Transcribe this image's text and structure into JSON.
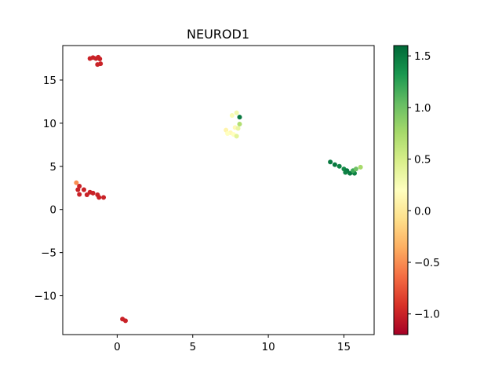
{
  "chart_data": {
    "type": "scatter",
    "title": "NEUROD1",
    "xlabel": "",
    "ylabel": "",
    "xlim": [
      -3.6,
      17.0
    ],
    "ylim": [
      -14.5,
      19.0
    ],
    "xticks": [
      0,
      5,
      10,
      15
    ],
    "xtick_labels": [
      "0",
      "5",
      "10",
      "15"
    ],
    "yticks": [
      -10,
      -5,
      0,
      5,
      10,
      15
    ],
    "ytick_labels": [
      "−10",
      "−5",
      "0",
      "5",
      "10",
      "15"
    ],
    "grid": false,
    "colorbar": {
      "colormap": "RdYlGn",
      "range": [
        -1.2,
        1.6
      ],
      "ticks": [
        -1.0,
        -0.5,
        0.0,
        0.5,
        1.0,
        1.5
      ],
      "tick_labels": [
        "−1.0",
        "−0.5",
        "0.0",
        "0.5",
        "1.0",
        "1.5"
      ]
    },
    "points": [
      {
        "x": -1.8,
        "y": 17.5,
        "v": -1.0
      },
      {
        "x": -1.6,
        "y": 17.6,
        "v": -1.0
      },
      {
        "x": -1.4,
        "y": 17.5,
        "v": -1.0
      },
      {
        "x": -1.25,
        "y": 17.65,
        "v": -1.0
      },
      {
        "x": -1.15,
        "y": 17.45,
        "v": -1.0
      },
      {
        "x": -1.3,
        "y": 16.8,
        "v": -1.0
      },
      {
        "x": -1.1,
        "y": 16.9,
        "v": -1.0
      },
      {
        "x": -2.7,
        "y": 3.1,
        "v": -0.5
      },
      {
        "x": -2.5,
        "y": 2.7,
        "v": -1.0
      },
      {
        "x": -2.6,
        "y": 2.3,
        "v": -1.0
      },
      {
        "x": -2.2,
        "y": 2.3,
        "v": -1.0
      },
      {
        "x": -1.8,
        "y": 2.0,
        "v": -1.0
      },
      {
        "x": -1.6,
        "y": 1.9,
        "v": -1.0
      },
      {
        "x": -1.3,
        "y": 1.7,
        "v": -1.0
      },
      {
        "x": -2.5,
        "y": 1.75,
        "v": -1.0
      },
      {
        "x": -2.0,
        "y": 1.7,
        "v": -1.0
      },
      {
        "x": -1.2,
        "y": 1.4,
        "v": -1.0
      },
      {
        "x": -0.9,
        "y": 1.4,
        "v": -1.0
      },
      {
        "x": 0.35,
        "y": -12.7,
        "v": -1.0
      },
      {
        "x": 0.55,
        "y": -12.9,
        "v": -1.0
      },
      {
        "x": 7.9,
        "y": 11.2,
        "v": 0.3
      },
      {
        "x": 7.6,
        "y": 10.9,
        "v": 0.25
      },
      {
        "x": 8.1,
        "y": 10.7,
        "v": 1.5
      },
      {
        "x": 8.1,
        "y": 9.9,
        "v": 0.7
      },
      {
        "x": 7.8,
        "y": 9.5,
        "v": 0.15
      },
      {
        "x": 8.0,
        "y": 9.4,
        "v": 0.35
      },
      {
        "x": 7.2,
        "y": 9.2,
        "v": 0.1
      },
      {
        "x": 7.5,
        "y": 8.9,
        "v": 0.15
      },
      {
        "x": 7.7,
        "y": 8.7,
        "v": 0.2
      },
      {
        "x": 7.9,
        "y": 8.5,
        "v": 0.4
      },
      {
        "x": 7.3,
        "y": 8.8,
        "v": 0.2
      },
      {
        "x": 14.1,
        "y": 5.5,
        "v": 1.5
      },
      {
        "x": 14.4,
        "y": 5.2,
        "v": 1.5
      },
      {
        "x": 14.7,
        "y": 5.0,
        "v": 1.45
      },
      {
        "x": 15.0,
        "y": 4.7,
        "v": 1.4
      },
      {
        "x": 15.2,
        "y": 4.5,
        "v": 1.5
      },
      {
        "x": 15.1,
        "y": 4.3,
        "v": 1.45
      },
      {
        "x": 15.4,
        "y": 4.2,
        "v": 1.5
      },
      {
        "x": 15.7,
        "y": 4.2,
        "v": 1.45
      },
      {
        "x": 15.6,
        "y": 4.5,
        "v": 1.2
      },
      {
        "x": 15.8,
        "y": 4.7,
        "v": 1.0
      },
      {
        "x": 16.1,
        "y": 4.9,
        "v": 0.75
      }
    ]
  }
}
